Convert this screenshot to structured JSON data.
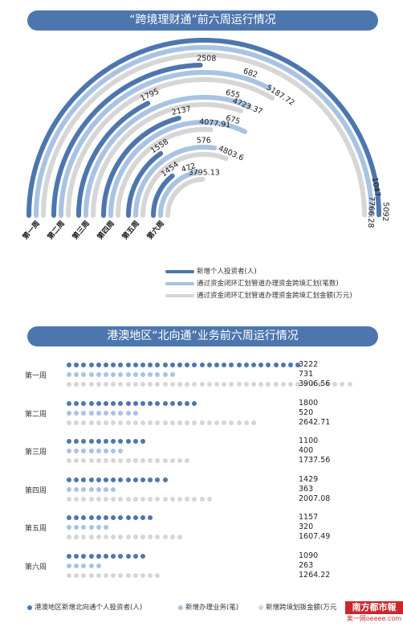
{
  "colors": {
    "dark": "#4d76ae",
    "mid": "#a8c3e3",
    "light": "#d6d6d6",
    "banner": "#4d76ae"
  },
  "chart_data": [
    {
      "type": "bar",
      "title": "“跨境理财通”前六周运行情况",
      "categories": [
        "第一周",
        "第二周",
        "第三周",
        "第四周",
        "第五周",
        "第六周"
      ],
      "series": [
        {
          "name": "新增个人投资者(人)",
          "values": [
            5092,
            2508,
            1795,
            2137,
            1558,
            1454
          ]
        },
        {
          "name": "通过资金闭环汇划管道办理资金跨境汇划(笔数)",
          "values": [
            1047,
            682,
            655,
            675,
            576,
            472
          ]
        },
        {
          "name": "通过资金闭环汇划管道办理资金跨境汇划金额(万元)",
          "values": [
            7766.28,
            5187.72,
            4723.37,
            4077.91,
            4803.6,
            3795.13
          ]
        }
      ]
    },
    {
      "type": "bar",
      "title": "港澳地区“北向通”业务前六周运行情况",
      "categories": [
        "第一周",
        "第二周",
        "第三周",
        "第四周",
        "第五周",
        "第六周"
      ],
      "series": [
        {
          "name": "港澳地区新增北向通个人投资者(人)",
          "values": [
            3222,
            1800,
            1100,
            1429,
            1157,
            1090
          ]
        },
        {
          "name": "新增办理业务(笔)",
          "values": [
            731,
            520,
            400,
            363,
            320,
            263
          ]
        },
        {
          "name": "新增跨境划拨金额(万元)",
          "values": [
            3906.56,
            2642.71,
            1737.56,
            2007.08,
            1607.49,
            1264.22
          ]
        }
      ]
    }
  ],
  "chart1": {
    "labels": {
      "dark": [
        "5092",
        "2508",
        "1795",
        "2137",
        "1558",
        "1454"
      ],
      "mid": [
        "1047",
        "682",
        "655",
        "675",
        "576",
        "472"
      ],
      "light": [
        "7766.28",
        "5187.72",
        "4723.37",
        "4077.91",
        "4803.6",
        "3795.13"
      ]
    }
  },
  "chart2": {
    "values": [
      [
        "3222",
        "731",
        "3906.56"
      ],
      [
        "1800",
        "520",
        "2642.71"
      ],
      [
        "1100",
        "400",
        "1737.56"
      ],
      [
        "1429",
        "363",
        "2007.08"
      ],
      [
        "1157",
        "320",
        "1607.49"
      ],
      [
        "1090",
        "263",
        "1264.22"
      ]
    ]
  },
  "legend2": {
    "s1": "港澳地区新增北向通个人投资者(人)",
    "s2": "新增办理业务(笔)",
    "s3": "新增跨境划拨金额(万元"
  },
  "logo": {
    "name": "南方都市報",
    "site": "奥一网oeeee.com"
  }
}
